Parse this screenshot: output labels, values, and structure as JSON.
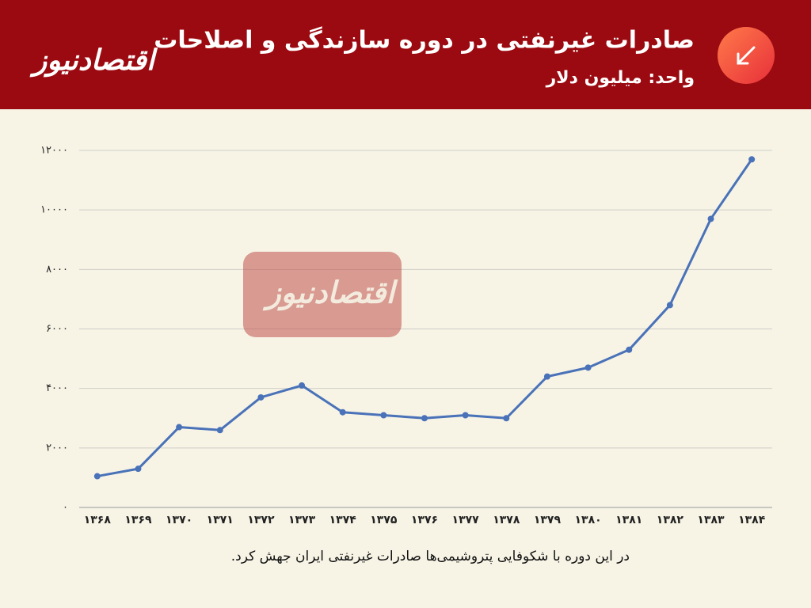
{
  "brand": "اقتصادنیوز",
  "chart_data": {
    "type": "line",
    "title": "صادرات غیرنفتی در دوره سازندگی و اصلاحات",
    "subtitle": "واحد: میلیون دلار",
    "caption": "در این دوره با شکوفایی پتروشیمی‌ها صادرات غیرنفتی ایران جهش کرد.",
    "categories": [
      "۱۳۶۸",
      "۱۳۶۹",
      "۱۳۷۰",
      "۱۳۷۱",
      "۱۳۷۲",
      "۱۳۷۳",
      "۱۳۷۴",
      "۱۳۷۵",
      "۱۳۷۶",
      "۱۳۷۷",
      "۱۳۷۸",
      "۱۳۷۹",
      "۱۳۸۰",
      "۱۳۸۱",
      "۱۳۸۲",
      "۱۳۸۳",
      "۱۳۸۴"
    ],
    "values": [
      1050,
      1300,
      2700,
      2600,
      3700,
      4100,
      3200,
      3100,
      3000,
      3100,
      3000,
      4400,
      4700,
      5300,
      6800,
      9700,
      11700
    ],
    "color": "#4a72b8",
    "ylim": [
      0,
      12000
    ],
    "yticks": [
      {
        "value": 0,
        "label": "۰"
      },
      {
        "value": 2000,
        "label": "۲۰۰۰"
      },
      {
        "value": 4000,
        "label": "۴۰۰۰"
      },
      {
        "value": 6000,
        "label": "۶۰۰۰"
      },
      {
        "value": 8000,
        "label": "۸۰۰۰"
      },
      {
        "value": 10000,
        "label": "۱۰۰۰۰"
      },
      {
        "value": 12000,
        "label": "۱۲۰۰۰"
      }
    ],
    "grid": true
  }
}
